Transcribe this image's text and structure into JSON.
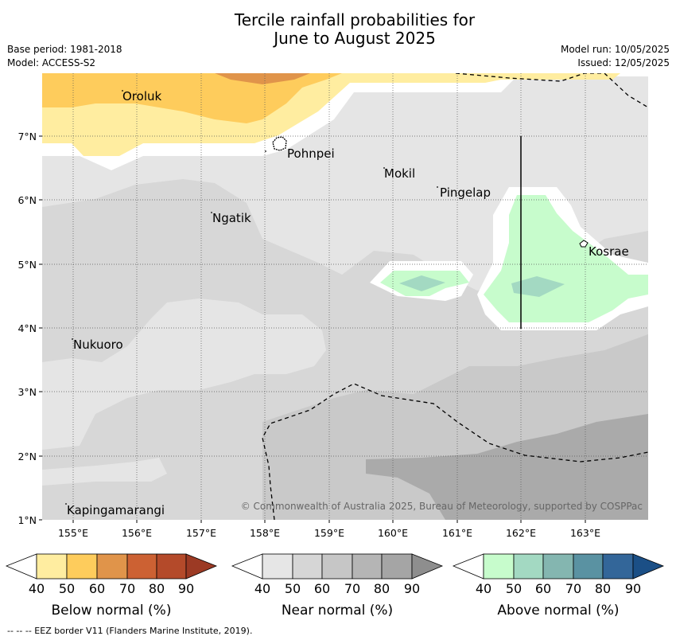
{
  "title": {
    "line1": "Tercile rainfall probabilities for",
    "line2": "June to August 2025"
  },
  "meta_left": {
    "base_period": "Base period: 1981-2018",
    "model": "Model: ACCESS-S2"
  },
  "meta_right": {
    "model_run": "Model run: 10/05/2025",
    "issued": "Issued: 12/05/2025"
  },
  "map": {
    "lon_labels": [
      "155°E",
      "156°E",
      "157°E",
      "158°E",
      "159°E",
      "160°E",
      "161°E",
      "162°E",
      "163°E"
    ],
    "lat_labels": [
      "7°N",
      "6°N",
      "5°N",
      "4°N",
      "3°N",
      "2°N",
      "1°N"
    ],
    "places": [
      {
        "name": "Oroluk"
      },
      {
        "name": "Pohnpei"
      },
      {
        "name": "Mokil"
      },
      {
        "name": "Pingelap"
      },
      {
        "name": "Ngatik"
      },
      {
        "name": "Kosrae"
      },
      {
        "name": "Nukuoro"
      },
      {
        "name": "Kapingamarangi"
      }
    ],
    "copyright": "© Commonwealth of Australia 2025, Bureau of Meteorology, supported by COSPPac",
    "colors": {
      "below_40": "#ffeda0",
      "below_50": "#fecc5c",
      "below_60": "#e0944a",
      "near_40": "#e5e5e5",
      "near_50": "#d7d7d7",
      "near_60": "#c9c9c9",
      "near_70": "#aaaaaa",
      "above_40": "#c7fccc",
      "above_50": "#a3d9c2"
    }
  },
  "legends": [
    {
      "title": "Below normal (%)",
      "ticks": [
        "40",
        "50",
        "60",
        "70",
        "80",
        "90"
      ],
      "colors": [
        "#ffeda0",
        "#fecc5c",
        "#e0944a",
        "#cc6133",
        "#b44a2a",
        "#9c3a24"
      ]
    },
    {
      "title": "Near normal (%)",
      "ticks": [
        "40",
        "50",
        "60",
        "70",
        "80",
        "90"
      ],
      "colors": [
        "#e6e6e6",
        "#d6d6d6",
        "#c6c6c6",
        "#b5b5b5",
        "#a5a5a5",
        "#8e8e8e"
      ]
    },
    {
      "title": "Above normal (%)",
      "ticks": [
        "40",
        "50",
        "60",
        "70",
        "80",
        "90"
      ],
      "colors": [
        "#c7fccc",
        "#a3d9c2",
        "#84b6b0",
        "#5a92a2",
        "#336699",
        "#1b4f86"
      ]
    }
  ],
  "footer": "--  --  -- EEZ border V11 (Flanders Marine Institute, 2019)."
}
